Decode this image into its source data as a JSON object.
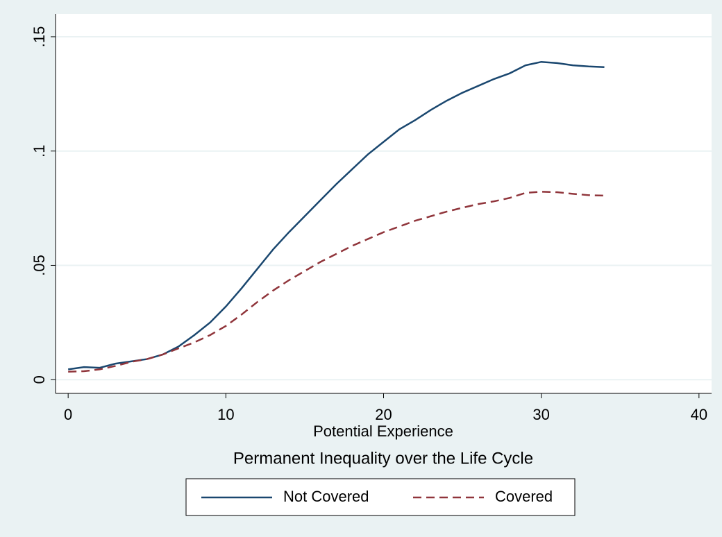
{
  "chart_data": {
    "type": "line",
    "title": "Permanent Inequality over the Life Cycle",
    "x_label": "Potential Experience",
    "x": [
      0,
      1,
      2,
      3,
      4,
      5,
      6,
      7,
      8,
      9,
      10,
      11,
      12,
      13,
      14,
      15,
      16,
      17,
      18,
      19,
      20,
      21,
      22,
      23,
      24,
      25,
      26,
      27,
      28,
      29,
      30,
      31,
      32,
      33,
      34
    ],
    "series": [
      {
        "name": "Not Covered",
        "color": "#1a476f",
        "dash": "none",
        "values": [
          0.0045,
          0.0055,
          0.0052,
          0.007,
          0.008,
          0.009,
          0.011,
          0.0145,
          0.0195,
          0.025,
          0.032,
          0.04,
          0.0485,
          0.057,
          0.0645,
          0.0715,
          0.0785,
          0.0855,
          0.092,
          0.0985,
          0.104,
          0.1095,
          0.1135,
          0.118,
          0.122,
          0.1255,
          0.1285,
          0.1315,
          0.134,
          0.1375,
          0.139,
          0.1385,
          0.1375,
          0.137,
          0.1367
        ]
      },
      {
        "name": "Covered",
        "color": "#90353b",
        "dash": "12 7",
        "values": [
          0.0035,
          0.0037,
          0.0045,
          0.006,
          0.0078,
          0.009,
          0.011,
          0.0137,
          0.0163,
          0.0195,
          0.0235,
          0.0285,
          0.034,
          0.039,
          0.0435,
          0.0475,
          0.0515,
          0.055,
          0.0585,
          0.0615,
          0.0645,
          0.067,
          0.0695,
          0.0715,
          0.0735,
          0.0752,
          0.0768,
          0.078,
          0.0795,
          0.0817,
          0.0822,
          0.082,
          0.0813,
          0.0807,
          0.0805
        ]
      }
    ],
    "xlim": [
      -0.8,
      40.8
    ],
    "xticks": [
      0,
      10,
      20,
      30,
      40
    ],
    "ylim": [
      -0.006,
      0.16
    ],
    "yticks": [
      0,
      {
        "value": 0.05,
        "label": ".05"
      },
      {
        "value": 0.1,
        "label": ".1"
      },
      {
        "value": 0.15,
        "label": ".15"
      }
    ],
    "grid": true,
    "legend": "bottom"
  }
}
